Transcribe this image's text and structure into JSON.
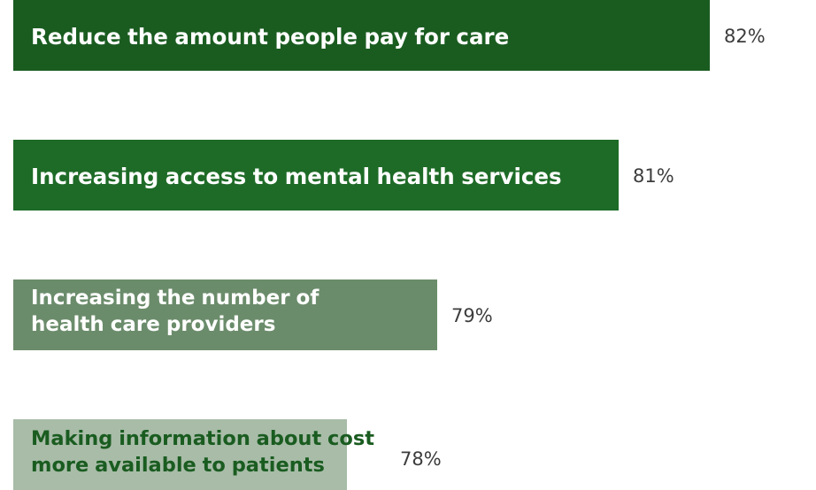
{
  "chart_data": {
    "type": "bar",
    "orientation": "horizontal",
    "categories": [
      "Reduce the amount people pay for care",
      "Increasing access to mental health services",
      "Increasing the number of health care providers",
      "Making information about cost more available to patients"
    ],
    "values": [
      82,
      81,
      79,
      78
    ],
    "value_labels": [
      "82%",
      "81%",
      "79%",
      "78%"
    ],
    "bar_colors": [
      "#1a5c20",
      "#1e6b27",
      "#6b8c6b",
      "#a8bca8"
    ],
    "label_colors": [
      "#ffffff",
      "#ffffff",
      "#ffffff",
      "#1a5c20"
    ],
    "xlim": [
      74.33,
      82.35
    ],
    "grid": false,
    "legend": "none"
  }
}
